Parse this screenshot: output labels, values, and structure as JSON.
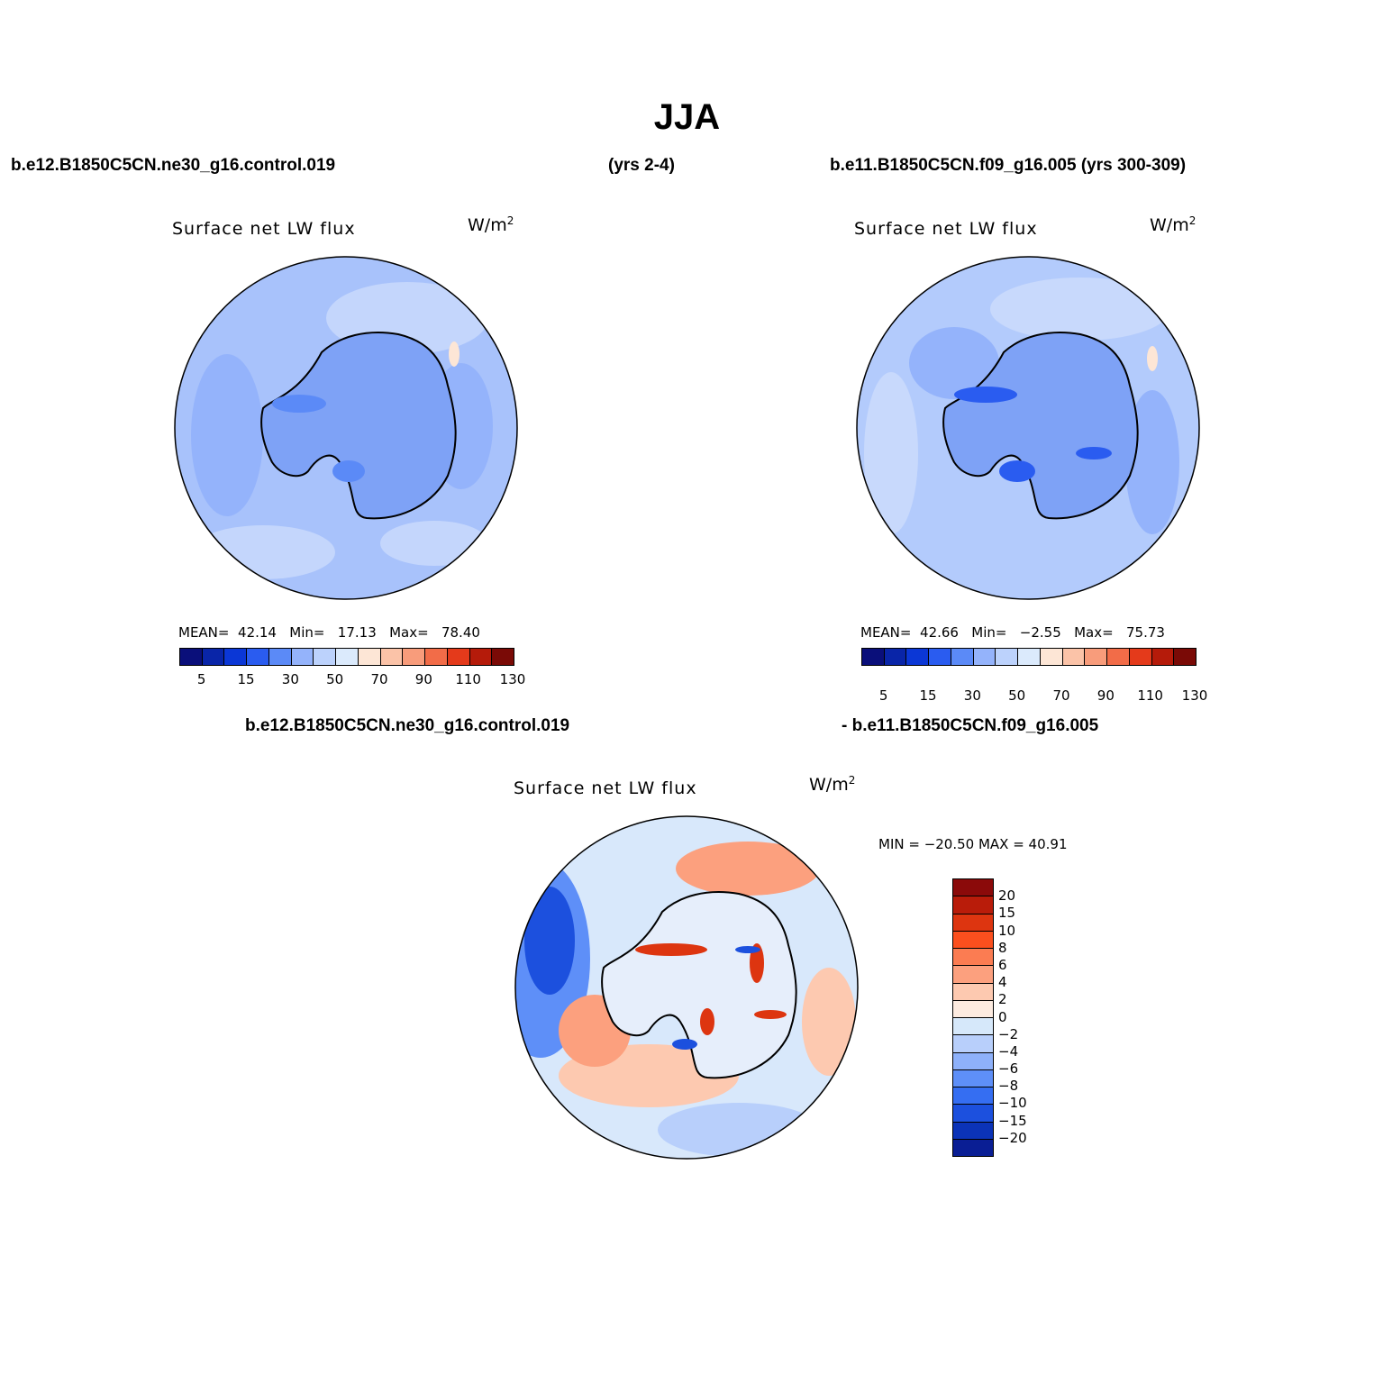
{
  "title": "JJA",
  "header": {
    "case1": "b.e12.B1850C5CN.ne30_g16.control.019",
    "case1_years": "(yrs 2-4)",
    "case2": "b.e11.B1850C5CN.f09_g16.005 (yrs 300-309)"
  },
  "diff_header": {
    "left": "b.e12.B1850C5CN.ne30_g16.control.019",
    "right": "- b.e11.B1850C5CN.f09_g16.005"
  },
  "panels": [
    {
      "title": "Surface net LW flux",
      "units": "W/m",
      "units_sup": "2",
      "mean_label": "MEAN=",
      "mean": "42.14",
      "min_label": "Min=",
      "min": "17.13",
      "max_label": "Max=",
      "max": "78.40",
      "base_color": "#a8c2fb"
    },
    {
      "title": "Surface net LW flux",
      "units": "W/m",
      "units_sup": "2",
      "mean_label": "MEAN=",
      "mean": "42.66",
      "min_label": "Min=",
      "min": "−2.55",
      "max_label": "Max=",
      "max": "75.73",
      "base_color": "#b3cbfc"
    }
  ],
  "diff_panel": {
    "title": "Surface net LW flux",
    "units": "W/m",
    "units_sup": "2",
    "stats": "MIN = −20.50 MAX =   40.91",
    "base_color": "#d8e8fb"
  },
  "colorbar_abs": {
    "colors": [
      "#0a0f7a",
      "#0925a8",
      "#0b37d6",
      "#2a5cf0",
      "#5b8af7",
      "#94b3fb",
      "#bcd2fc",
      "#dbeafc",
      "#fde6d6",
      "#fbc3a8",
      "#f89c7b",
      "#f26c48",
      "#e43a1b",
      "#b51b0a",
      "#7a0a06"
    ],
    "tick_labels": [
      "5",
      "15",
      "30",
      "50",
      "70",
      "90",
      "110",
      "130"
    ]
  },
  "colorbar_diff": {
    "colors": [
      "#8b0a0a",
      "#b91c0a",
      "#dd3510",
      "#fb4f1e",
      "#fb7c52",
      "#fca07e",
      "#fdc9b0",
      "#fdebe0",
      "#d6e8fa",
      "#b8cffb",
      "#8eb1fa",
      "#5e8ff8",
      "#356ef2",
      "#1c50de",
      "#0b33b8",
      "#0a1e94"
    ],
    "tick_labels": [
      "20",
      "15",
      "10",
      "8",
      "6",
      "4",
      "2",
      "0",
      "−2",
      "−4",
      "−6",
      "−8",
      "−10",
      "−15",
      "−20"
    ]
  }
}
